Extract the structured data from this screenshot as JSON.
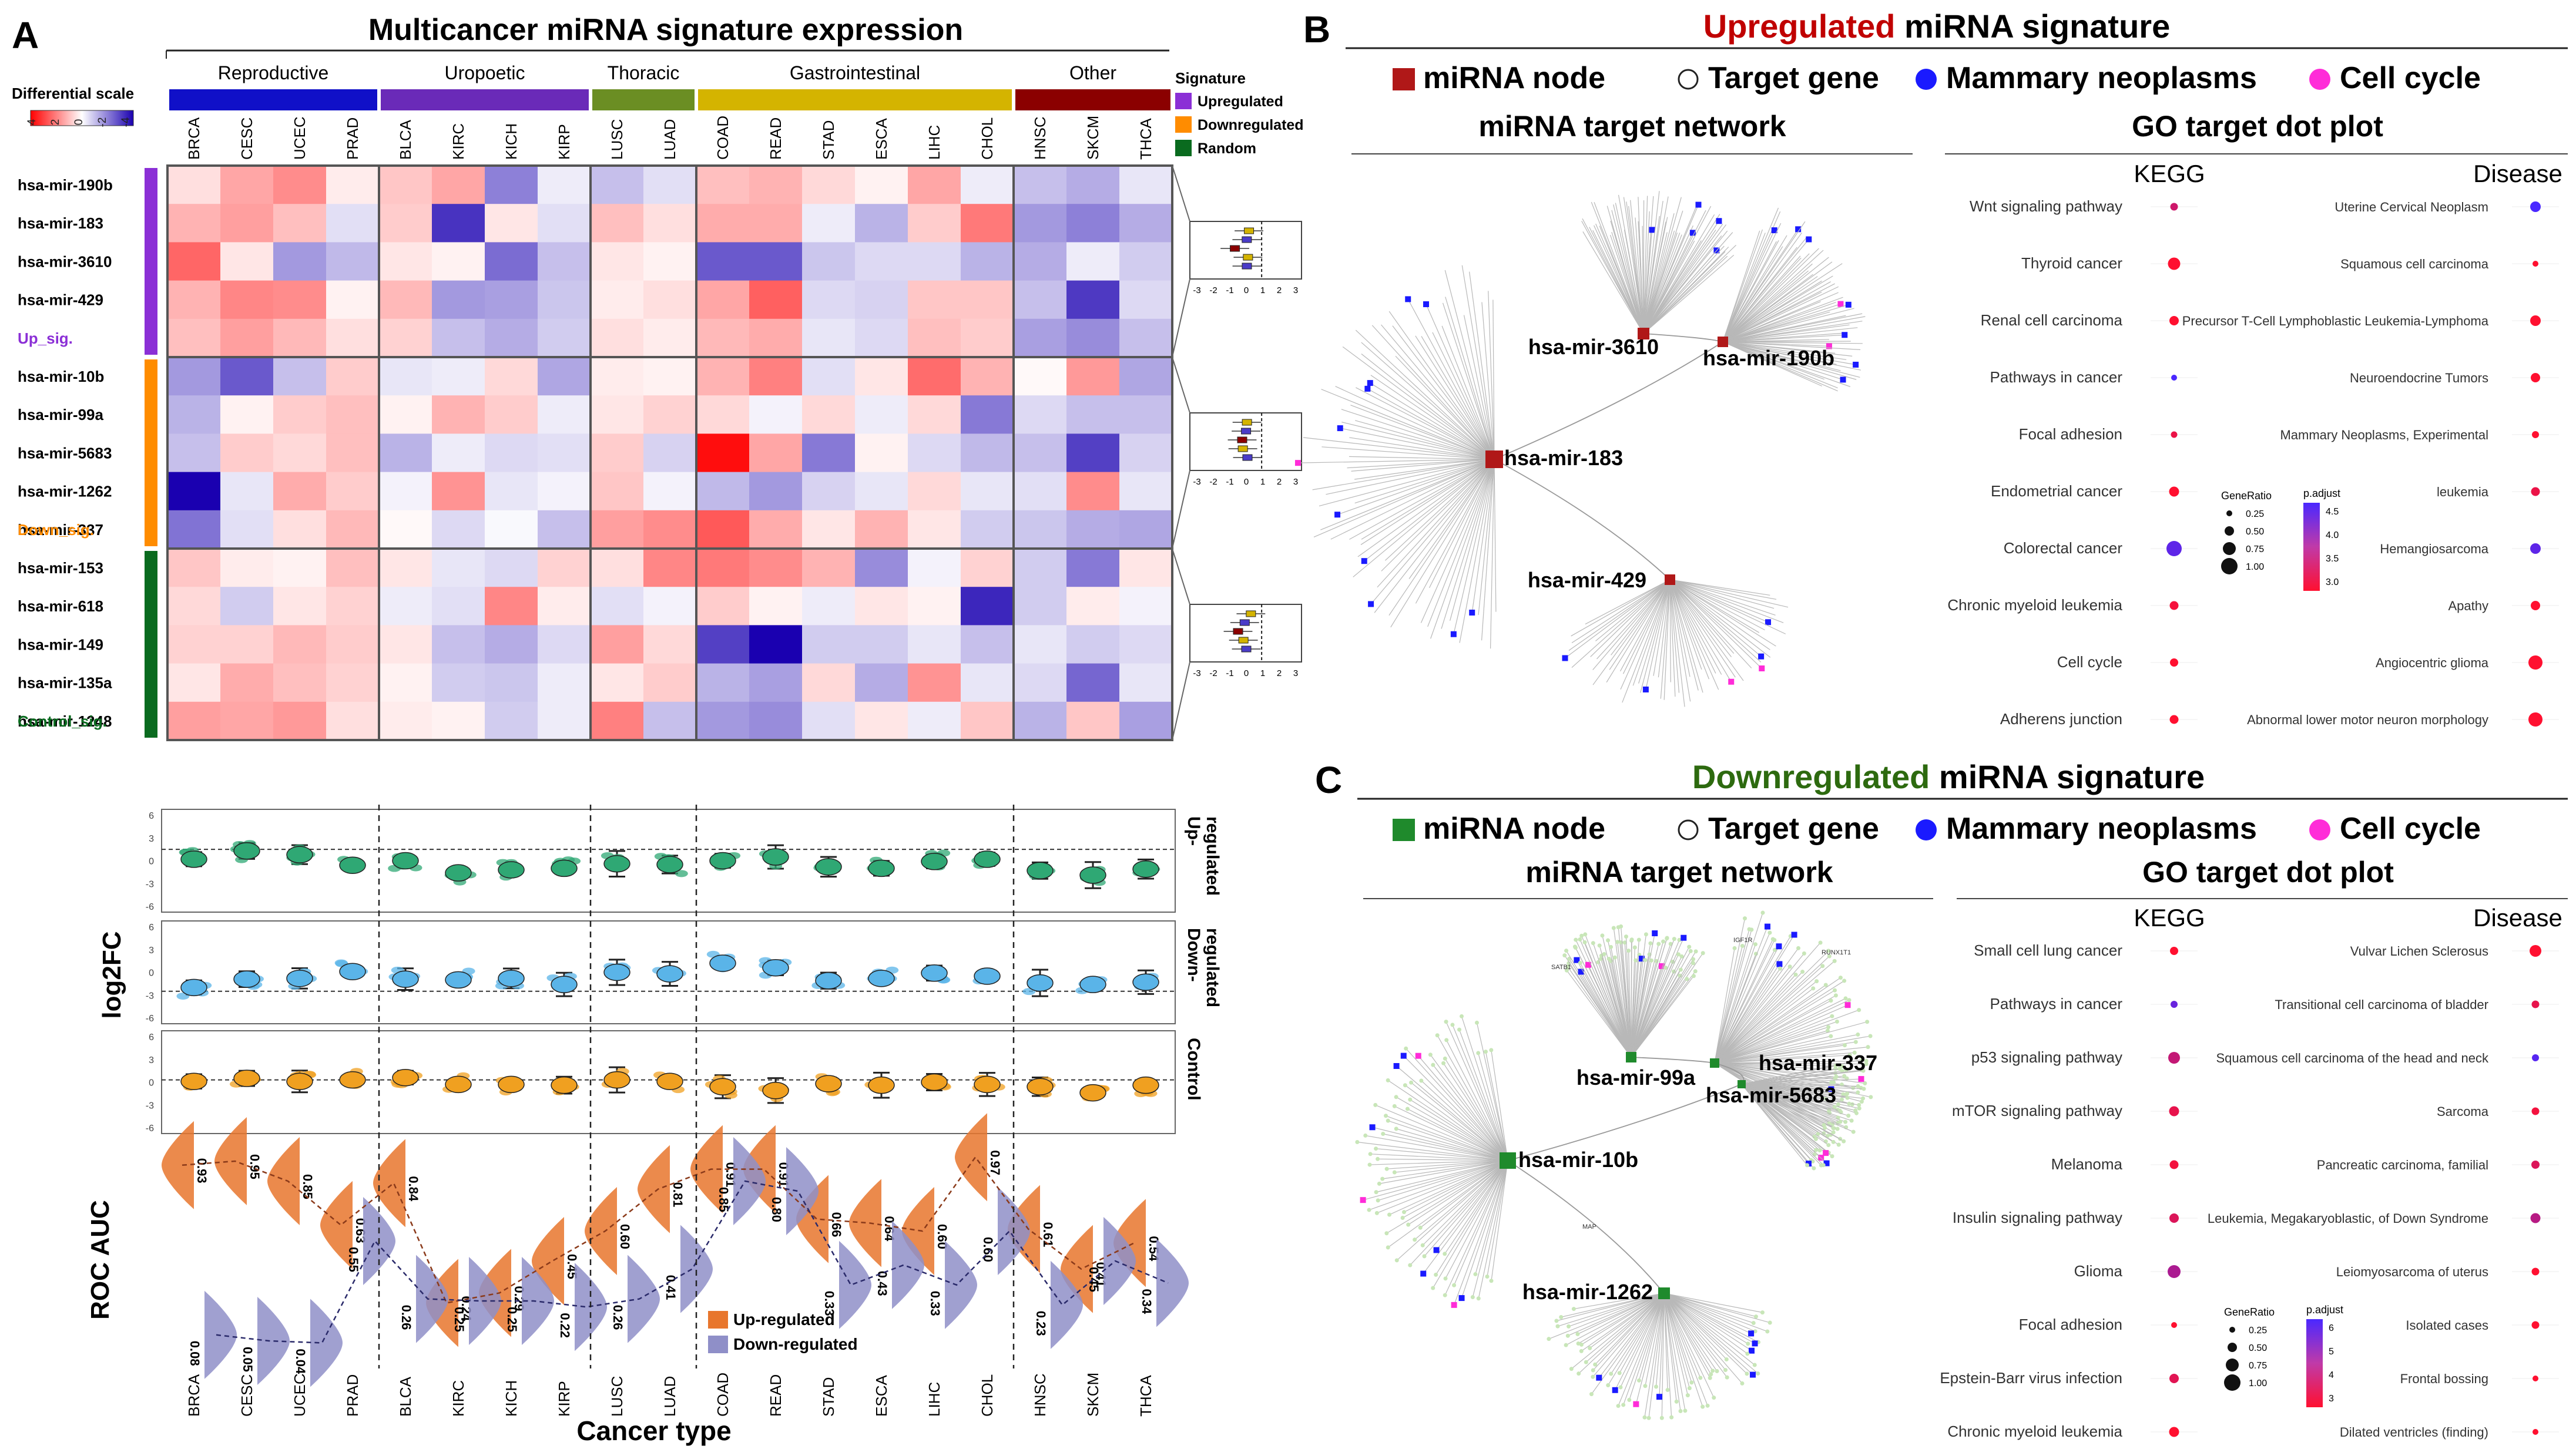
{
  "panel_labels": {
    "a": "A",
    "b": "B",
    "c": "C"
  },
  "panel_a": {
    "title": "Multicancer miRNA signature expression",
    "differential_scale": {
      "label": "Differential scale",
      "ticks": [
        "4",
        "2",
        "0",
        "-2",
        "-4"
      ]
    },
    "signature_legend": {
      "title": "Signature",
      "items": [
        {
          "label": "Upregulated",
          "color": "#8b2fd6"
        },
        {
          "label": "Downregulated",
          "color": "#ff8c00"
        },
        {
          "label": "Random",
          "color": "#0a6b1f"
        }
      ]
    },
    "groups": [
      {
        "label": "Reproductive",
        "color": "#1010c8",
        "span": [
          0,
          3
        ]
      },
      {
        "label": "Uropoetic",
        "color": "#6a2ab8",
        "span": [
          4,
          7
        ]
      },
      {
        "label": "Thoracic",
        "color": "#6b8e23",
        "span": [
          8,
          9
        ]
      },
      {
        "label": "Gastrointestinal",
        "color": "#d4b400",
        "span": [
          10,
          15
        ]
      },
      {
        "label": "Other",
        "color": "#8b0000",
        "span": [
          16,
          18
        ]
      }
    ],
    "cancers": [
      "BRCA",
      "CESC",
      "UCEC",
      "PRAD",
      "BLCA",
      "KIRC",
      "KICH",
      "KIRP",
      "LUSC",
      "LUAD",
      "COAD",
      "READ",
      "STAD",
      "ESCA",
      "LIHC",
      "CHOL",
      "HNSC",
      "SKCM",
      "THCA"
    ],
    "row_blocks": [
      {
        "label": "Up_sig.",
        "color": "#8b2fd6",
        "rows": [
          "hsa-mir-190b",
          "hsa-mir-183",
          "hsa-mir-3610",
          "hsa-mir-429"
        ]
      },
      {
        "label": "Down_sig.",
        "color": "#ff8c00",
        "rows": [
          "hsa-mir-10b",
          "hsa-mir-99a",
          "hsa-mir-5683",
          "hsa-mir-1262",
          "hsa-mir-337"
        ]
      },
      {
        "label": "Control_sig.",
        "color": "#0a6b1f",
        "rows": [
          "hsa-mir-153",
          "hsa-mir-618",
          "hsa-mir-149",
          "hsa-mir-135a",
          "hsa-mir-1248"
        ]
      }
    ],
    "heatmap_values": [
      [
        0.5,
        1.4,
        1.8,
        0.3,
        0.9,
        1.4,
        -2.0,
        -0.3,
        -1.0,
        -0.5,
        1.0,
        1.2,
        0.6,
        0.2,
        1.4,
        -0.3,
        -1.0,
        -1.3,
        -0.4
      ],
      [
        1.2,
        1.5,
        1.0,
        -0.5,
        0.8,
        -3.2,
        0.4,
        -0.5,
        1.0,
        0.5,
        1.3,
        1.3,
        -0.3,
        -1.2,
        0.8,
        2.1,
        -1.6,
        -2.0,
        -1.3
      ],
      [
        2.4,
        0.4,
        -1.6,
        -1.1,
        0.4,
        0.2,
        -2.3,
        -1.0,
        0.4,
        0.2,
        -2.6,
        -2.6,
        -0.9,
        -0.6,
        -0.6,
        -1.2,
        -1.3,
        -0.3,
        -0.8
      ],
      [
        1.2,
        1.9,
        1.8,
        0.2,
        1.1,
        -1.6,
        -1.5,
        -0.9,
        0.3,
        0.5,
        1.4,
        2.5,
        -0.6,
        -0.7,
        0.9,
        0.9,
        -1.0,
        -3.1,
        -0.6
      ],
      [
        1.0,
        1.5,
        1.1,
        0.5,
        0.7,
        -1.0,
        -1.3,
        -0.8,
        0.5,
        0.3,
        1.1,
        1.3,
        -0.4,
        -0.6,
        1.0,
        0.8,
        -1.5,
        -1.8,
        -1.0
      ],
      [
        -1.6,
        -2.6,
        -1.0,
        0.8,
        -0.4,
        -0.3,
        0.6,
        -1.4,
        0.3,
        0.2,
        1.2,
        2.0,
        -0.5,
        0.4,
        2.3,
        1.2,
        0.1,
        1.6,
        -1.4
      ],
      [
        -1.2,
        0.2,
        0.8,
        1.0,
        0.2,
        1.2,
        0.8,
        -0.3,
        0.4,
        0.7,
        0.6,
        -0.2,
        0.6,
        -0.3,
        0.6,
        -2.1,
        -0.6,
        -1.0,
        -1.0
      ],
      [
        -1.0,
        0.8,
        0.6,
        1.0,
        -1.2,
        -0.3,
        -0.6,
        -0.5,
        0.8,
        -0.7,
        3.8,
        1.4,
        -2.1,
        0.2,
        -0.6,
        -1.1,
        -1.0,
        -3.0,
        -0.7
      ],
      [
        -4.0,
        -0.4,
        1.3,
        0.8,
        -0.2,
        1.7,
        -0.4,
        -0.2,
        0.9,
        -0.2,
        -1.1,
        -1.6,
        -0.7,
        -0.4,
        0.6,
        -0.4,
        -0.5,
        1.8,
        -0.4
      ],
      [
        -2.2,
        -0.5,
        0.5,
        1.1,
        0.1,
        -0.6,
        -0.1,
        -1.0,
        1.5,
        1.8,
        2.6,
        1.3,
        0.4,
        1.2,
        0.4,
        -0.8,
        -0.9,
        -1.3,
        -1.4
      ],
      [
        0.9,
        0.3,
        0.2,
        1.0,
        0.4,
        -0.4,
        -0.6,
        0.7,
        0.5,
        1.9,
        2.1,
        1.8,
        1.2,
        -1.8,
        -0.2,
        0.7,
        -0.8,
        -2.1,
        0.4
      ],
      [
        0.6,
        -0.8,
        0.4,
        0.7,
        -0.3,
        -0.5,
        1.9,
        0.3,
        -0.5,
        -0.2,
        0.8,
        0.2,
        -0.3,
        0.4,
        0.2,
        -3.4,
        -0.8,
        0.3,
        -0.2
      ],
      [
        0.7,
        0.7,
        1.1,
        0.8,
        0.4,
        -1.0,
        -1.3,
        -0.6,
        1.5,
        0.6,
        -3.0,
        -4.2,
        -0.8,
        -0.8,
        -0.4,
        -1.0,
        -0.4,
        -0.8,
        -0.6
      ],
      [
        0.4,
        1.3,
        1.0,
        0.7,
        0.2,
        -0.8,
        -0.9,
        -0.3,
        0.4,
        0.8,
        -1.2,
        -1.5,
        0.6,
        -1.3,
        1.7,
        -0.4,
        -0.6,
        -2.4,
        -0.4
      ],
      [
        1.5,
        1.4,
        1.6,
        0.5,
        0.3,
        0.2,
        -0.8,
        -0.3,
        2.0,
        -1.0,
        -1.6,
        -1.8,
        -0.5,
        0.4,
        -0.3,
        0.9,
        -1.2,
        0.9,
        -1.5
      ]
    ],
    "forest_ticks": [
      "-3",
      "-2",
      "-1",
      "0",
      "1",
      "2",
      "3"
    ],
    "log2fc": {
      "ylabel": "log2FC",
      "ticks": [
        "6",
        "3",
        "0",
        "-3",
        "-6"
      ],
      "panels": [
        {
          "label": "Up-\nregulated",
          "color": "#2fa874",
          "values": [
            0.2,
            1.3,
            0.8,
            -0.6,
            0.0,
            -1.6,
            -1.2,
            -1.0,
            -0.4,
            -0.5,
            0.0,
            0.5,
            -0.8,
            -1.0,
            -0.1,
            0.2,
            -1.3,
            -1.9,
            -1.1
          ]
        },
        {
          "label": "Down-\nregulated",
          "color": "#5ab4e8",
          "values": [
            -2.0,
            -0.9,
            -0.8,
            0.1,
            -0.9,
            -1.0,
            -0.8,
            -1.6,
            0.0,
            -0.2,
            1.2,
            0.6,
            -1.1,
            -0.8,
            -0.1,
            -0.5,
            -1.4,
            -1.6,
            -1.3
          ]
        },
        {
          "label": "Control",
          "color": "#f0a020",
          "values": [
            0.1,
            0.5,
            0.1,
            0.3,
            0.6,
            -0.3,
            -0.3,
            -0.4,
            0.3,
            0.1,
            -0.6,
            -1.1,
            -0.2,
            -0.4,
            0.0,
            -0.3,
            -0.6,
            -1.4,
            -0.4
          ]
        }
      ]
    },
    "roc": {
      "ylabel": "ROC AUC",
      "xlabel": "Cancer type",
      "up_values": [
        0.93,
        0.95,
        0.85,
        0.63,
        0.84,
        0.24,
        0.29,
        0.45,
        0.6,
        0.81,
        0.91,
        0.91,
        0.66,
        0.64,
        0.6,
        0.97,
        0.61,
        0.41,
        0.54
      ],
      "down_values": [
        0.08,
        0.05,
        0.04,
        0.55,
        0.26,
        0.25,
        0.25,
        0.22,
        0.26,
        0.41,
        0.85,
        0.8,
        0.33,
        0.43,
        0.33,
        0.6,
        0.23,
        0.45,
        0.34
      ],
      "up_labels": [
        "0.93",
        "0.95",
        "0.85",
        "0.63",
        "0.84",
        "0.24",
        "0.29",
        "0.45",
        "0.60",
        "0.81",
        "0.91",
        "0.91",
        "0.66",
        "0.64",
        "0.60",
        "0.97",
        "0.61",
        "0.41",
        "0.54"
      ],
      "down_labels": [
        "0.08",
        "0.05",
        "0.04",
        "0.55",
        "0.26",
        "0.25",
        "0.25",
        "0.22",
        "0.26",
        "0.41",
        "0.85",
        "0.80",
        "0.33",
        "0.43",
        "0.33",
        "0.60",
        "0.23",
        "0.45",
        "0.34"
      ],
      "legend": [
        {
          "label": "Up-regulated",
          "color": "#e8762d"
        },
        {
          "label": "Down-regulated",
          "color": "#8f8fc8"
        }
      ]
    }
  },
  "panel_b": {
    "title_highlight": "Upregulated",
    "title_rest": " miRNA signature",
    "highlight_color": "#c00000",
    "node_color": "#b01818",
    "legend": [
      "miRNA node",
      "Target gene",
      "Mammary neoplasms",
      "Cell cycle"
    ],
    "network_title": "miRNA target network",
    "dotplot_title": "GO target dot plot",
    "hubs": [
      "hsa-mir-3610",
      "hsa-mir-190b",
      "hsa-mir-183",
      "hsa-mir-429"
    ],
    "kegg_title": "KEGG",
    "disease_title": "Disease",
    "kegg_terms": [
      "Wnt signaling pathway",
      "Thyroid cancer",
      "Renal cell carcinoma",
      "Pathways in cancer",
      "Focal adhesion",
      "Endometrial cancer",
      "Colorectal cancer",
      "Chronic myeloid leukemia",
      "Cell cycle",
      "Adherens junction"
    ],
    "kegg_ratio": [
      0.35,
      0.75,
      0.5,
      0.2,
      0.25,
      0.55,
      1.0,
      0.45,
      0.4,
      0.45
    ],
    "kegg_padj": [
      3.5,
      3.0,
      3.0,
      4.8,
      3.2,
      3.0,
      4.6,
      3.1,
      3.0,
      3.0
    ],
    "disease_terms": [
      "Uterine Cervical Neoplasm",
      "Squamous cell carcinoma",
      "Precursor T-Cell Lymphoblastic Leukemia-Lymphoma",
      "Neuroendocrine Tumors",
      "Mammary Neoplasms, Experimental",
      "leukemia",
      "Hemangiosarcoma",
      "Apathy",
      "Angiocentric glioma",
      "Abnormal lower motor neuron morphology"
    ],
    "disease_ratio": [
      0.6,
      0.2,
      0.6,
      0.5,
      0.3,
      0.45,
      0.6,
      0.5,
      0.9,
      0.9
    ],
    "disease_padj": [
      4.8,
      3.0,
      3.0,
      3.0,
      3.0,
      3.2,
      4.6,
      3.0,
      3.0,
      3.0
    ],
    "gene_ratio_title": "GeneRatio",
    "gene_ratio_ticks": [
      "0.25",
      "0.50",
      "0.75",
      "1.00"
    ],
    "padj_title": "p.adjust",
    "padj_ticks": [
      "4.5",
      "4.0",
      "3.5",
      "3.0"
    ]
  },
  "panel_c": {
    "title_highlight": "Downregulated",
    "title_rest": " miRNA signature",
    "highlight_color": "#2d6a0f",
    "node_color": "#1f8a2c",
    "legend": [
      "miRNA node",
      "Target gene",
      "Mammary neoplasms",
      "Cell cycle"
    ],
    "network_title": "miRNA target network",
    "dotplot_title": "GO target dot plot",
    "hubs": [
      "hsa-mir-99a",
      "hsa-mir-337",
      "hsa-mir-5683",
      "hsa-mir-10b",
      "hsa-mir-1262"
    ],
    "gene_tags": [
      "IGF1R",
      "RUNX1T1",
      "SATB1",
      "MAP"
    ],
    "kegg_title": "KEGG",
    "disease_title": "Disease",
    "kegg_terms": [
      "Small cell lung cancer",
      "Pathways in cancer",
      "p53 signaling pathway",
      "mTOR signaling pathway",
      "Melanoma",
      "Insulin signaling pathway",
      "Glioma",
      "Focal adhesion",
      "Epstein-Barr virus infection",
      "Chronic myeloid leukemia"
    ],
    "kegg_ratio": [
      0.4,
      0.3,
      0.7,
      0.55,
      0.45,
      0.5,
      0.8,
      0.2,
      0.5,
      0.55
    ],
    "kegg_padj": [
      3.0,
      5.5,
      4.0,
      3.4,
      3.2,
      3.6,
      4.4,
      3.0,
      3.5,
      3.0
    ],
    "disease_terms": [
      "Vulvar Lichen Sclerosus",
      "Transitional cell carcinoma of bladder",
      "Squamous cell carcinoma of the head and neck",
      "Sarcoma",
      "Pancreatic carcinoma, familial",
      "Leukemia, Megakaryoblastic, of Down Syndrome",
      "Leiomyosarcoma of uterus",
      "Isolated cases",
      "Frontal bossing",
      "Dilated ventricles (finding)"
    ],
    "disease_ratio": [
      0.7,
      0.35,
      0.3,
      0.35,
      0.4,
      0.55,
      0.35,
      0.35,
      0.2,
      0.2
    ],
    "disease_padj": [
      3.0,
      3.4,
      5.8,
      3.2,
      3.6,
      4.2,
      3.0,
      3.0,
      3.0,
      3.0
    ],
    "gene_ratio_title": "GeneRatio",
    "gene_ratio_ticks": [
      "0.25",
      "0.50",
      "0.75",
      "1.00"
    ],
    "padj_title": "p.adjust",
    "padj_ticks": [
      "6",
      "5",
      "4",
      "3"
    ]
  }
}
